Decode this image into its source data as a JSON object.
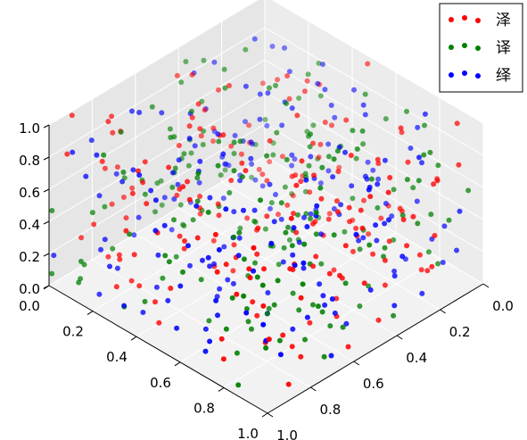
{
  "chart_data": {
    "type": "scatter3d",
    "view": "isometric",
    "axes": {
      "x": {
        "ticks": [
          "0.0",
          "0.2",
          "0.4",
          "0.6",
          "0.8",
          "1.0"
        ],
        "lim": [
          0,
          1
        ]
      },
      "y": {
        "ticks": [
          "0.0",
          "0.2",
          "0.4",
          "0.6",
          "0.8",
          "1.0"
        ],
        "lim": [
          0,
          1
        ]
      },
      "z": {
        "ticks": [
          "0.0",
          "0.2",
          "0.4",
          "0.6",
          "0.8",
          "1.0"
        ],
        "lim": [
          0,
          1
        ]
      }
    },
    "grid": true,
    "legend_position": "top-right",
    "series": [
      {
        "name": "泽",
        "color": "#ff0000"
      },
      {
        "name": "译",
        "color": "#008000"
      },
      {
        "name": "绎",
        "color": "#0000ff"
      }
    ],
    "points_per_series": 200,
    "distribution": "uniform [0,1]^3"
  }
}
